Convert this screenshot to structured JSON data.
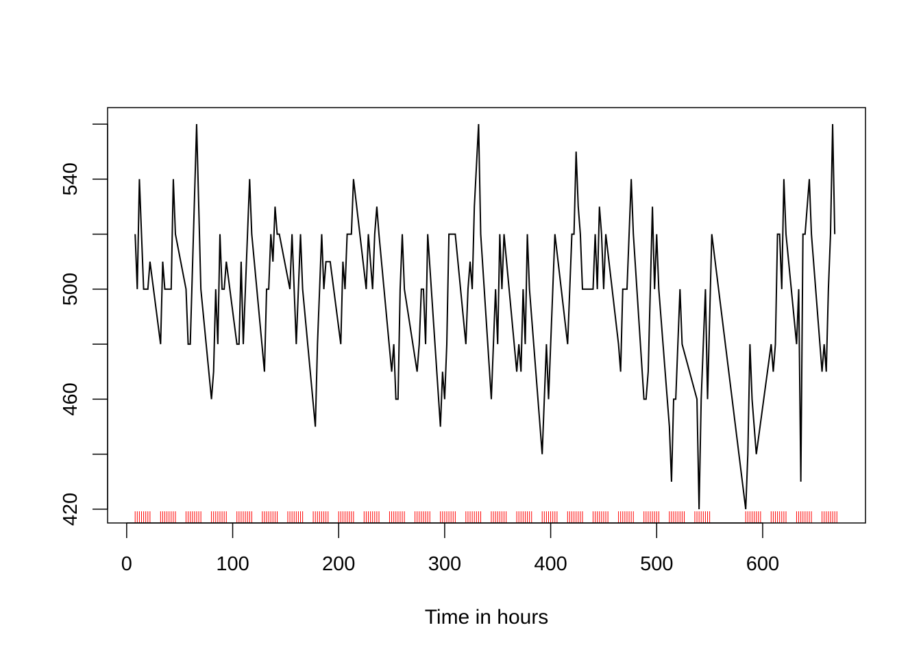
{
  "chart_data": {
    "type": "line",
    "title": "",
    "xlabel": "Time in hours",
    "ylabel": "",
    "xlim": [
      -18,
      697
    ],
    "ylim": [
      415,
      566
    ],
    "x_ticks": [
      0,
      100,
      200,
      300,
      400,
      500,
      600
    ],
    "x_tick_labels": [
      "0",
      "100",
      "200",
      "300",
      "400",
      "500",
      "600"
    ],
    "y_ticks": [
      420,
      440,
      460,
      480,
      500,
      520,
      540,
      560
    ],
    "y_tick_labels": [
      "420",
      "",
      "460",
      "",
      "500",
      "",
      "540",
      ""
    ],
    "grid": false,
    "line_color": "#000000",
    "rug_color": "#ff0000",
    "series": [
      {
        "x": [
          8,
          10,
          12,
          16,
          18,
          20,
          22,
          32,
          34,
          36,
          38,
          42,
          44,
          46,
          56,
          58,
          60,
          66,
          70,
          80,
          82,
          84,
          86,
          88,
          90,
          92,
          94,
          104,
          106,
          108,
          110,
          112,
          116,
          118,
          130,
          132,
          134,
          136,
          138,
          140,
          142,
          144,
          154,
          156,
          160,
          164,
          166,
          178,
          180,
          184,
          186,
          188,
          190,
          192,
          202,
          204,
          206,
          208,
          210,
          212,
          214,
          226,
          228,
          232,
          234,
          236,
          238,
          250,
          252,
          254,
          256,
          258,
          260,
          262,
          274,
          276,
          278,
          280,
          282,
          284,
          296,
          298,
          300,
          302,
          304,
          306,
          308,
          310,
          320,
          322,
          324,
          326,
          328,
          332,
          334,
          344,
          346,
          348,
          350,
          352,
          354,
          356,
          368,
          370,
          372,
          374,
          376,
          378,
          380,
          392,
          394,
          396,
          398,
          400,
          402,
          404,
          416,
          418,
          420,
          422,
          424,
          426,
          428,
          430,
          440,
          442,
          444,
          446,
          448,
          450,
          452,
          464,
          466,
          468,
          470,
          472,
          476,
          478,
          488,
          490,
          492,
          496,
          498,
          500,
          502,
          512,
          514,
          516,
          518,
          522,
          524,
          538,
          540,
          542,
          546,
          548,
          552,
          584,
          586,
          588,
          590,
          594,
          608,
          610,
          612,
          614,
          616,
          618,
          620,
          622,
          632,
          634,
          636,
          638,
          640,
          644,
          646,
          656,
          658,
          660,
          662,
          664,
          666,
          668
        ],
        "y": [
          520,
          500,
          540,
          500,
          500,
          500,
          510,
          480,
          510,
          500,
          500,
          500,
          540,
          520,
          500,
          480,
          480,
          560,
          500,
          460,
          470,
          500,
          480,
          520,
          500,
          500,
          510,
          480,
          480,
          510,
          480,
          500,
          540,
          520,
          470,
          500,
          500,
          520,
          510,
          530,
          520,
          520,
          500,
          520,
          480,
          520,
          500,
          450,
          480,
          520,
          500,
          510,
          510,
          510,
          480,
          510,
          500,
          520,
          520,
          520,
          540,
          500,
          520,
          500,
          520,
          530,
          520,
          470,
          480,
          460,
          460,
          500,
          520,
          500,
          470,
          480,
          500,
          500,
          480,
          520,
          450,
          470,
          460,
          480,
          520,
          520,
          520,
          520,
          480,
          500,
          510,
          500,
          530,
          560,
          520,
          460,
          480,
          500,
          480,
          520,
          500,
          520,
          470,
          480,
          470,
          500,
          480,
          520,
          500,
          440,
          460,
          480,
          460,
          480,
          500,
          520,
          480,
          500,
          520,
          520,
          550,
          530,
          520,
          500,
          500,
          520,
          500,
          530,
          520,
          500,
          520,
          480,
          470,
          500,
          500,
          500,
          540,
          520,
          460,
          460,
          470,
          530,
          500,
          520,
          500,
          450,
          430,
          460,
          460,
          500,
          480,
          460,
          420,
          460,
          500,
          460,
          520,
          420,
          440,
          480,
          460,
          440,
          480,
          470,
          480,
          520,
          520,
          500,
          540,
          520,
          480,
          500,
          430,
          520,
          520,
          540,
          520,
          470,
          480,
          470,
          500,
          520,
          560,
          520
        ]
      }
    ],
    "rug_x": [
      8,
      10,
      12,
      14,
      16,
      18,
      20,
      22,
      32,
      34,
      36,
      38,
      40,
      42,
      44,
      46,
      56,
      58,
      60,
      62,
      64,
      66,
      68,
      70,
      80,
      82,
      84,
      86,
      88,
      90,
      92,
      94,
      104,
      106,
      108,
      110,
      112,
      114,
      116,
      118,
      128,
      130,
      132,
      134,
      136,
      138,
      140,
      142,
      152,
      154,
      156,
      158,
      160,
      162,
      164,
      166,
      176,
      178,
      180,
      182,
      184,
      186,
      188,
      190,
      200,
      202,
      204,
      206,
      208,
      210,
      212,
      214,
      224,
      226,
      228,
      230,
      232,
      234,
      236,
      238,
      248,
      250,
      252,
      254,
      256,
      258,
      260,
      262,
      272,
      274,
      276,
      278,
      280,
      282,
      284,
      286,
      296,
      298,
      300,
      302,
      304,
      306,
      308,
      310,
      320,
      322,
      324,
      326,
      328,
      330,
      332,
      334,
      344,
      346,
      348,
      350,
      352,
      354,
      356,
      358,
      368,
      370,
      372,
      374,
      376,
      378,
      380,
      382,
      392,
      394,
      396,
      398,
      400,
      402,
      404,
      406,
      416,
      418,
      420,
      422,
      424,
      426,
      428,
      430,
      440,
      442,
      444,
      446,
      448,
      450,
      452,
      454,
      464,
      466,
      468,
      470,
      472,
      474,
      476,
      478,
      488,
      490,
      492,
      494,
      496,
      498,
      500,
      502,
      512,
      514,
      516,
      518,
      520,
      522,
      524,
      526,
      536,
      538,
      540,
      542,
      544,
      546,
      548,
      550,
      584,
      586,
      588,
      590,
      592,
      594,
      596,
      598,
      608,
      610,
      612,
      614,
      616,
      618,
      620,
      622,
      632,
      634,
      636,
      638,
      640,
      642,
      644,
      646,
      656,
      658,
      660,
      662,
      664,
      666,
      668,
      670
    ]
  }
}
